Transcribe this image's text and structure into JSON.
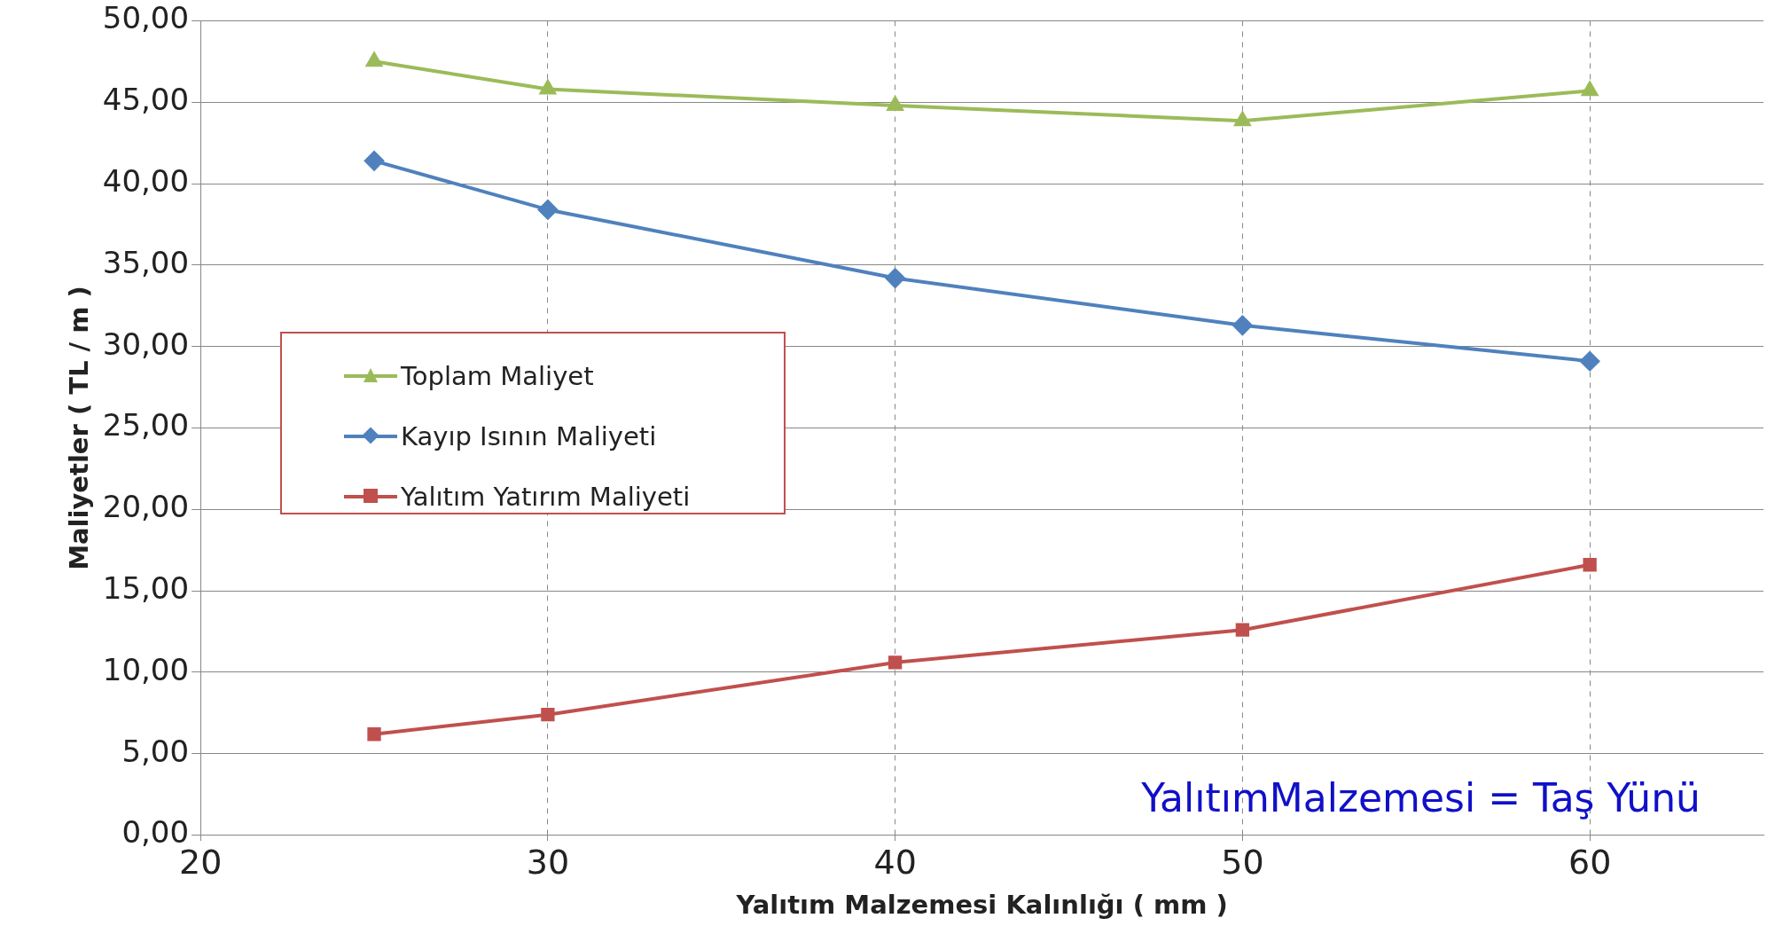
{
  "chart_data": {
    "type": "line",
    "xlabel": "Yalıtım Malzemesi Kalınlığı ( mm )",
    "ylabel": "Maliyetler ( TL / m )",
    "x": [
      25,
      30,
      40,
      50,
      60
    ],
    "series": [
      {
        "name": "Toplam Maliyet",
        "color": "#9bbb59",
        "marker": "triangle",
        "values": [
          47.5,
          45.8,
          44.8,
          43.85,
          45.7
        ]
      },
      {
        "name": "Kayıp Isının Maliyeti",
        "color": "#4f81bd",
        "marker": "diamond",
        "values": [
          41.4,
          38.4,
          34.2,
          31.3,
          29.1
        ]
      },
      {
        "name": "Yalıtım Yatırım Maliyeti",
        "color": "#c0504d",
        "marker": "square",
        "values": [
          6.2,
          7.4,
          10.6,
          12.6,
          16.6
        ]
      }
    ],
    "xlim": [
      20,
      65
    ],
    "xticks": [
      20,
      30,
      40,
      50,
      60
    ],
    "ylim": [
      0,
      50
    ],
    "yticks": [
      {
        "value": 0,
        "label": "0,00"
      },
      {
        "value": 5,
        "label": "5,00"
      },
      {
        "value": 10,
        "label": "10,00"
      },
      {
        "value": 15,
        "label": "15,00"
      },
      {
        "value": 20,
        "label": "20,00"
      },
      {
        "value": 25,
        "label": "25,00"
      },
      {
        "value": 30,
        "label": "30,00"
      },
      {
        "value": 35,
        "label": "35,00"
      },
      {
        "value": 40,
        "label": "40,00"
      },
      {
        "value": 45,
        "label": "45,00"
      },
      {
        "value": 50,
        "label": "50,00"
      }
    ],
    "grid": true,
    "legend": "left",
    "annotations": [
      "YalıtımMalzemesi = Taş Yünü"
    ]
  }
}
